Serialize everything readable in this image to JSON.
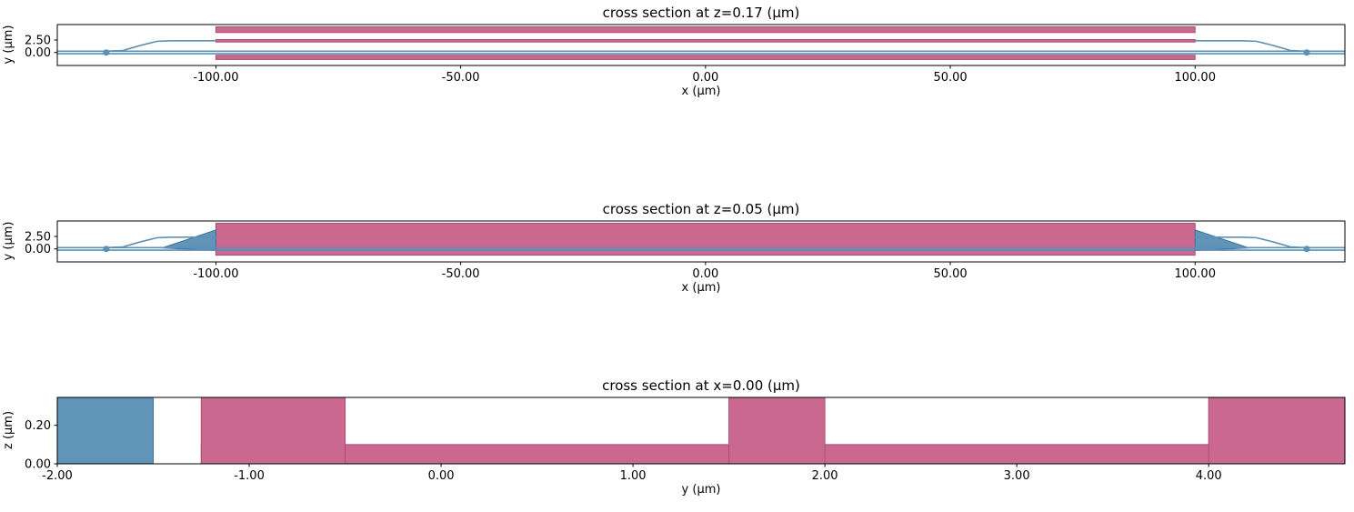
{
  "page": {
    "background": "#ffffff"
  },
  "colors": {
    "pink": "#cb688f",
    "pink_edge": "#a94f72",
    "blue": "#6094b8",
    "blue_edge": "#3f7299",
    "line": "#5c90b4",
    "axis": "#000000"
  },
  "chart_data": [
    {
      "type": "area",
      "title": "cross section at z=0.17 (μm)",
      "xlabel": "x (μm)",
      "ylabel": "y (μm)",
      "xlim": [
        -132.4,
        130.6
      ],
      "ylim": [
        -2.6,
        5.6
      ],
      "xticks": [
        -100,
        -50,
        0,
        50,
        100
      ],
      "xtick_labels": [
        "-100.00",
        "-50.00",
        "0.00",
        "50.00",
        "100.00"
      ],
      "yticks": [
        0,
        2.5
      ],
      "ytick_labels": [
        "0.00",
        "2.50"
      ],
      "grid": false,
      "legend": null,
      "rects": [
        {
          "x": [
            -100,
            100
          ],
          "y": [
            4.0,
            5.15
          ],
          "color": "pink"
        },
        {
          "x": [
            -100,
            100
          ],
          "y": [
            2.1,
            2.6
          ],
          "color": "pink"
        },
        {
          "x": [
            -100,
            100
          ],
          "y": [
            -1.4,
            -0.55
          ],
          "color": "pink"
        }
      ],
      "polys": [],
      "lines": [
        {
          "points": [
            [
              -132.4,
              0.25
            ],
            [
              130.6,
              0.25
            ]
          ]
        },
        {
          "points": [
            [
              -132.4,
              -0.25
            ],
            [
              130.6,
              -0.25
            ]
          ]
        },
        {
          "points": [
            [
              -122.4,
              0.25
            ],
            [
              -119,
              0.4
            ],
            [
              -115.5,
              1.4
            ],
            [
              -112,
              2.25
            ],
            [
              -109,
              2.35
            ],
            [
              -100,
              2.35
            ]
          ]
        },
        {
          "points": [
            [
              122.8,
              0.25
            ],
            [
              119.5,
              0.4
            ],
            [
              116,
              1.4
            ],
            [
              112.5,
              2.25
            ],
            [
              109.5,
              2.35
            ],
            [
              100,
              2.35
            ]
          ]
        }
      ],
      "markers": [
        {
          "x": -122.4,
          "y": 0
        },
        {
          "x": 122.8,
          "y": 0
        }
      ]
    },
    {
      "type": "area",
      "title": "cross section at z=0.05 (μm)",
      "xlabel": "x (μm)",
      "ylabel": "y (μm)",
      "xlim": [
        -132.4,
        130.6
      ],
      "ylim": [
        -2.6,
        5.6
      ],
      "xticks": [
        -100,
        -50,
        0,
        50,
        100
      ],
      "xtick_labels": [
        "-100.00",
        "-50.00",
        "0.00",
        "50.00",
        "100.00"
      ],
      "yticks": [
        0,
        2.5
      ],
      "ytick_labels": [
        "0.00",
        "2.50"
      ],
      "grid": false,
      "legend": null,
      "rects": [
        {
          "x": [
            -100,
            100
          ],
          "y": [
            -1.25,
            5.15
          ],
          "color": "pink"
        }
      ],
      "polys": [
        {
          "points": [
            [
              -111,
              0.2
            ],
            [
              -100,
              3.8
            ],
            [
              -100,
              -0.35
            ]
          ],
          "color": "blue"
        },
        {
          "points": [
            [
              111,
              0.2
            ],
            [
              100,
              3.8
            ],
            [
              100,
              -0.35
            ]
          ],
          "color": "blue"
        }
      ],
      "lines": [
        {
          "points": [
            [
              -132.4,
              0.25
            ],
            [
              130.6,
              0.25
            ]
          ]
        },
        {
          "points": [
            [
              -132.4,
              -0.25
            ],
            [
              130.6,
              -0.25
            ]
          ]
        },
        {
          "points": [
            [
              -122.4,
              0.25
            ],
            [
              -119,
              0.4
            ],
            [
              -115.5,
              1.4
            ],
            [
              -112,
              2.25
            ],
            [
              -109,
              2.35
            ],
            [
              -100,
              2.35
            ]
          ]
        },
        {
          "points": [
            [
              122.8,
              0.25
            ],
            [
              119.5,
              0.4
            ],
            [
              116,
              1.4
            ],
            [
              112.5,
              2.25
            ],
            [
              109.5,
              2.35
            ],
            [
              100,
              2.35
            ]
          ]
        }
      ],
      "markers": [
        {
          "x": -122.4,
          "y": 0
        },
        {
          "x": 122.8,
          "y": 0
        }
      ]
    },
    {
      "type": "area",
      "title": "cross section at x=0.00 (μm)",
      "xlabel": "y (μm)",
      "ylabel": "z (μm)",
      "xlim": [
        -2.0,
        4.71
      ],
      "ylim": [
        0,
        0.345
      ],
      "xticks": [
        -2,
        -1,
        0,
        1,
        2,
        3,
        4
      ],
      "xtick_labels": [
        "-2.00",
        "-1.00",
        "0.00",
        "1.00",
        "2.00",
        "3.00",
        "4.00"
      ],
      "yticks": [
        0,
        0.2
      ],
      "ytick_labels": [
        "0.00",
        "0.20"
      ],
      "grid": false,
      "legend": null,
      "rects": [
        {
          "x": [
            -1.25,
            4.71
          ],
          "y": [
            0,
            0.1
          ],
          "color": "pink"
        },
        {
          "x": [
            -1.25,
            -0.5
          ],
          "y": [
            0,
            0.345
          ],
          "color": "pink"
        },
        {
          "x": [
            1.5,
            2.0
          ],
          "y": [
            0,
            0.345
          ],
          "color": "pink"
        },
        {
          "x": [
            4.0,
            4.71
          ],
          "y": [
            0,
            0.345
          ],
          "color": "pink"
        },
        {
          "x": [
            -2.0,
            -1.5
          ],
          "y": [
            0,
            0.345
          ],
          "color": "blue"
        }
      ],
      "polys": [],
      "lines": [],
      "markers": []
    }
  ]
}
